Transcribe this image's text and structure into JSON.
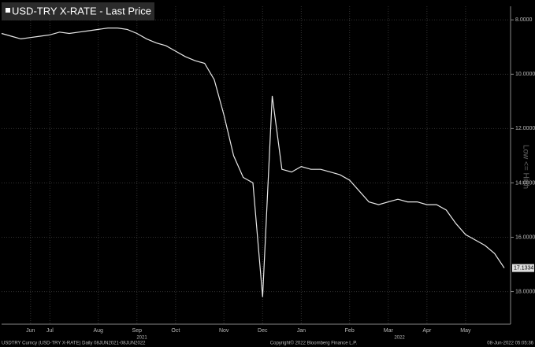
{
  "chart_data": {
    "type": "line",
    "title": "USD-TRY X-RATE - Last Price",
    "categories": [
      null,
      null,
      null,
      "Jun",
      null,
      "Jul",
      null,
      null,
      null,
      null,
      "Aug",
      null,
      null,
      null,
      "Sep",
      null,
      null,
      null,
      "Oct",
      null,
      null,
      null,
      null,
      "Nov",
      null,
      null,
      null,
      "Dec",
      null,
      null,
      null,
      "Jan",
      null,
      null,
      null,
      null,
      "Feb",
      null,
      null,
      null,
      "Mar",
      null,
      null,
      null,
      "Apr",
      null,
      null,
      null,
      "May",
      null,
      null,
      null,
      null
    ],
    "year_labels": [
      "2021",
      "2022"
    ],
    "series": [
      {
        "name": "USD-TRY X-RATE",
        "color": "#e8e8e8",
        "values": [
          8.5,
          8.6,
          8.7,
          8.65,
          8.6,
          8.55,
          8.45,
          8.5,
          8.45,
          8.4,
          8.35,
          8.3,
          8.3,
          8.35,
          8.5,
          8.7,
          8.85,
          8.95,
          9.15,
          9.35,
          9.5,
          9.6,
          10.2,
          11.5,
          13.0,
          13.8,
          14.0,
          18.2,
          10.8,
          13.5,
          13.6,
          13.4,
          13.5,
          13.5,
          13.6,
          13.7,
          13.9,
          14.3,
          14.7,
          14.8,
          14.7,
          14.6,
          14.7,
          14.7,
          14.8,
          14.8,
          15.0,
          15.5,
          15.9,
          16.1,
          16.3,
          16.6,
          17.1334
        ]
      }
    ],
    "ylim": [
      7.5,
      19.2
    ],
    "y_inverted": true,
    "yticks": [
      {
        "value": 8,
        "label": "8.0000"
      },
      {
        "value": 10,
        "label": "10.0000"
      },
      {
        "value": 12,
        "label": "12.0000"
      },
      {
        "value": 14,
        "label": "14.0000"
      },
      {
        "value": 16,
        "label": "16.0000"
      },
      {
        "value": 18,
        "label": "18.0000"
      }
    ],
    "axis_note": "Low <= High",
    "grid": true,
    "footer": {
      "left": "USDTRY Curncy (USD-TRY X-RATE)  Daily 08JUN2021-08JUN2022",
      "center": "Copyright© 2022 Bloomberg Finance L.P.",
      "right": "08-Jun-2022 05:05:36"
    }
  }
}
